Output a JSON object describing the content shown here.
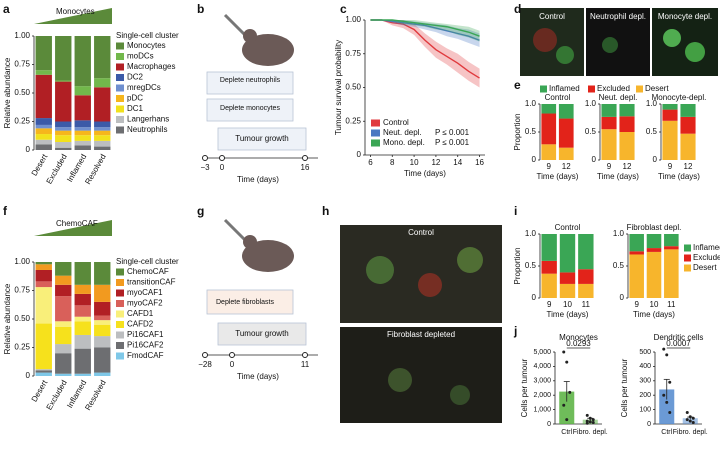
{
  "panel_letters": [
    "a",
    "b",
    "c",
    "d",
    "e",
    "f",
    "g",
    "h",
    "i",
    "j"
  ],
  "chart_data": [
    {
      "type": "bar",
      "stacked": true,
      "title": "Monocytes",
      "ylabel": "Relative abundance",
      "legend_title": "Single-cell cluster",
      "categories": [
        "Desert",
        "Excluded",
        "Inflamed",
        "Resolved"
      ],
      "ylim": [
        0,
        1
      ],
      "yticks": [
        0,
        0.25,
        {
          "value": 0.5,
          "label": "0.50"
        },
        0.75,
        {
          "value": 1,
          "label": "1.00"
        }
      ],
      "series": [
        {
          "name": "Neutrophils",
          "color": "#6d6e71",
          "values": [
            0.05,
            0.02,
            0.04,
            0.03
          ]
        },
        {
          "name": "Langerhans",
          "color": "#bcbec0",
          "values": [
            0.04,
            0.05,
            0.04,
            0.05
          ]
        },
        {
          "name": "DC1",
          "color": "#f2e11c",
          "values": [
            0.05,
            0.06,
            0.05,
            0.05
          ]
        },
        {
          "name": "pDC",
          "color": "#f6b61c",
          "values": [
            0.05,
            0.04,
            0.04,
            0.04
          ]
        },
        {
          "name": "mregDCs",
          "color": "#6f8fcf",
          "values": [
            0.03,
            0.03,
            0.03,
            0.03
          ]
        },
        {
          "name": "DC2",
          "color": "#3b5aa8",
          "values": [
            0.06,
            0.05,
            0.06,
            0.05
          ]
        },
        {
          "name": "Macrophages",
          "color": "#b11f24",
          "values": [
            0.38,
            0.35,
            0.22,
            0.3
          ]
        },
        {
          "name": "moDCs",
          "color": "#72b84b",
          "values": [
            0.04,
            0.01,
            0.08,
            0.08
          ]
        },
        {
          "name": "Monocytes",
          "color": "#5b8a3a",
          "values": [
            0.3,
            0.39,
            0.44,
            0.37
          ]
        }
      ]
    },
    {
      "type": "line",
      "xlabel": "Time (days)",
      "ylabel": "Tumour survival probability",
      "x": [
        6,
        7,
        8,
        9,
        10,
        11,
        12,
        13,
        14,
        15,
        16
      ],
      "xlim": [
        5.5,
        16.5
      ],
      "xticks": [
        6,
        8,
        10,
        12,
        14,
        16
      ],
      "ylim": [
        0,
        1
      ],
      "yticks": [
        0,
        0.25,
        {
          "value": 0.5,
          "label": "0.50"
        },
        0.75,
        {
          "value": 1,
          "label": "1.00"
        }
      ],
      "series": [
        {
          "name": "Control",
          "color": "#e03a3e",
          "values": [
            1,
            1,
            0.98,
            0.97,
            0.93,
            0.85,
            0.78,
            0.73,
            0.68,
            0.62,
            0.57
          ],
          "ci_low": [
            1,
            1,
            0.96,
            0.94,
            0.89,
            0.8,
            0.72,
            0.67,
            0.61,
            0.55,
            0.5
          ],
          "ci_high": [
            1,
            1,
            1,
            1,
            0.97,
            0.9,
            0.84,
            0.79,
            0.75,
            0.69,
            0.64
          ]
        },
        {
          "name": "Neut. depl.",
          "annotation": "P ≤ 0.001",
          "color": "#4a78c2",
          "values": [
            1,
            1,
            0.99,
            0.98,
            0.97,
            0.96,
            0.94,
            0.92,
            0.9,
            0.88,
            0.85
          ],
          "ci_low": [
            1,
            1,
            0.98,
            0.96,
            0.95,
            0.93,
            0.91,
            0.88,
            0.86,
            0.83,
            0.8
          ],
          "ci_high": [
            1,
            1,
            1,
            1,
            0.99,
            0.98,
            0.97,
            0.96,
            0.94,
            0.93,
            0.9
          ]
        },
        {
          "name": "Mono. depl.",
          "annotation": "P ≤ 0.001",
          "color": "#3aa655",
          "values": [
            1,
            1,
            1,
            0.99,
            0.98,
            0.97,
            0.96,
            0.95,
            0.93,
            0.91,
            0.88
          ],
          "ci_low": [
            1,
            1,
            0.99,
            0.97,
            0.96,
            0.95,
            0.93,
            0.92,
            0.89,
            0.87,
            0.84
          ],
          "ci_high": [
            1,
            1,
            1,
            1,
            1,
            0.99,
            0.98,
            0.97,
            0.96,
            0.95,
            0.92
          ]
        }
      ]
    },
    {
      "type": "bar",
      "stacked": true,
      "ylabel": "Proportion",
      "xlabel": "Time (days)",
      "ylim": [
        0,
        1
      ],
      "yticks": [
        0,
        0.5,
        {
          "value": 1,
          "label": "1.0"
        }
      ],
      "series": [
        {
          "name": "Desert",
          "color": "#f7b52c"
        },
        {
          "name": "Excluded",
          "color": "#e2231a"
        },
        {
          "name": "Inflamed",
          "color": "#3aa655"
        }
      ],
      "panels": [
        {
          "title": "Control",
          "categories": [
            "9",
            "12"
          ],
          "values": [
            [
              0.28,
              0.22
            ],
            [
              0.55,
              0.52
            ],
            [
              0.17,
              0.26
            ]
          ]
        },
        {
          "title": "Neut. depl.",
          "categories": [
            "9",
            "12"
          ],
          "values": [
            [
              0.55,
              0.5
            ],
            [
              0.22,
              0.28
            ],
            [
              0.23,
              0.22
            ]
          ]
        },
        {
          "title": "Monocyte-depl.",
          "categories": [
            "9",
            "12"
          ],
          "values": [
            [
              0.7,
              0.47
            ],
            [
              0.2,
              0.3
            ],
            [
              0.1,
              0.23
            ]
          ]
        }
      ]
    },
    {
      "type": "bar",
      "stacked": true,
      "title": "ChemoCAF",
      "ylabel": "Relative abundance",
      "legend_title": "Single-cell cluster",
      "categories": [
        "Desert",
        "Excluded",
        "Inflamed",
        "Resolved"
      ],
      "ylim": [
        0,
        1
      ],
      "yticks": [
        0,
        0.25,
        {
          "value": 0.5,
          "label": "0.50"
        },
        0.75,
        {
          "value": 1,
          "label": "1.00"
        }
      ],
      "series": [
        {
          "name": "FmodCAF",
          "color": "#7fc8e8",
          "values": [
            0.03,
            0.02,
            0.02,
            0.03
          ]
        },
        {
          "name": "Pi16CAF2",
          "color": "#6d6e71",
          "values": [
            0.02,
            0.18,
            0.22,
            0.22
          ]
        },
        {
          "name": "Pi16CAF1",
          "color": "#bcbec0",
          "values": [
            0.01,
            0.08,
            0.12,
            0.1
          ]
        },
        {
          "name": "CAFD2",
          "color": "#f6e11c",
          "values": [
            0.4,
            0.15,
            0.12,
            0.1
          ]
        },
        {
          "name": "CAFD1",
          "color": "#f9ef7a",
          "values": [
            0.32,
            0.05,
            0.04,
            0.04
          ]
        },
        {
          "name": "myoCAF2",
          "color": "#d9605a",
          "values": [
            0.05,
            0.22,
            0.1,
            0.04
          ]
        },
        {
          "name": "myoCAF1",
          "color": "#b11f24",
          "values": [
            0.1,
            0.1,
            0.1,
            0.12
          ]
        },
        {
          "name": "transitionCAF",
          "color": "#f29a1f",
          "values": [
            0.05,
            0.08,
            0.08,
            0.15
          ]
        },
        {
          "name": "ChemoCAF",
          "color": "#5b8a3a",
          "values": [
            0.02,
            0.12,
            0.2,
            0.2
          ]
        }
      ]
    },
    {
      "type": "bar",
      "stacked": true,
      "ylabel": "Proportion",
      "xlabel": "Time (days)",
      "ylim": [
        0,
        1
      ],
      "yticks": [
        0,
        0.5,
        {
          "value": 1,
          "label": "1.0"
        }
      ],
      "series": [
        {
          "name": "Desert",
          "color": "#f7b52c"
        },
        {
          "name": "Excluded",
          "color": "#e2231a"
        },
        {
          "name": "Inflamed",
          "color": "#3aa655"
        }
      ],
      "panels": [
        {
          "title": "Control",
          "categories": [
            "9",
            "10",
            "11"
          ],
          "values": [
            [
              0.38,
              0.22,
              0.22
            ],
            [
              0.2,
              0.18,
              0.23
            ],
            [
              0.42,
              0.6,
              0.55
            ]
          ]
        },
        {
          "title": "Fibroblast depl.",
          "categories": [
            "9",
            "10",
            "11"
          ],
          "values": [
            [
              0.68,
              0.72,
              0.76
            ],
            [
              0.05,
              0.06,
              0.05
            ],
            [
              0.27,
              0.22,
              0.19
            ]
          ]
        }
      ]
    },
    {
      "type": "bar",
      "title": "Monocytes",
      "ylabel": "Cells per tumour",
      "color": "#5fb548",
      "p_value": "0.0293",
      "categories": [
        "Ctrl",
        "Fibro. depl."
      ],
      "values": [
        2250,
        300
      ],
      "errors": [
        700,
        100
      ],
      "points": [
        [
          5000,
          4300,
          2200,
          1300,
          300
        ],
        [
          600,
          400,
          300,
          200,
          150,
          100,
          50
        ]
      ],
      "ylim": [
        0,
        5000
      ],
      "yticks": [
        0,
        {
          "value": 1000,
          "label": "1,000"
        },
        {
          "value": 2000,
          "label": "2,000"
        },
        {
          "value": 3000,
          "label": "3,000"
        },
        {
          "value": 4000,
          "label": "4,000"
        },
        {
          "value": 5000,
          "label": "5,000"
        }
      ]
    },
    {
      "type": "bar",
      "title": "Dendritic cells",
      "ylabel": "Cells per tumour",
      "color": "#5b8fd0",
      "p_value": "0.0007",
      "categories": [
        "Ctrl",
        "Fibro. depl."
      ],
      "values": [
        240,
        40
      ],
      "errors": [
        70,
        8
      ],
      "points": [
        [
          520,
          480,
          290,
          200,
          150,
          80
        ],
        [
          80,
          50,
          40,
          30,
          20,
          10
        ]
      ],
      "ylim": [
        0,
        500
      ],
      "yticks": [
        0,
        100,
        200,
        300,
        400,
        500
      ]
    }
  ],
  "diagram_b": {
    "steps": [
      "Deplete neutrophils",
      "Deplete monocytes",
      "Tumour growth"
    ],
    "timeline": [
      "−3",
      "0",
      "16"
    ],
    "xlabel": "Time (days)"
  },
  "images_d": {
    "labels": [
      "Control",
      "Neutrophil depl.",
      "Monocyte depl."
    ]
  },
  "diagram_g": {
    "steps": [
      "Deplete fibroblasts",
      "Tumour growth"
    ],
    "timeline": [
      "−28",
      "0",
      "11"
    ],
    "xlabel": "Time (days)"
  },
  "images_h": {
    "labels": [
      "Control",
      "Fibroblast depleted"
    ]
  }
}
